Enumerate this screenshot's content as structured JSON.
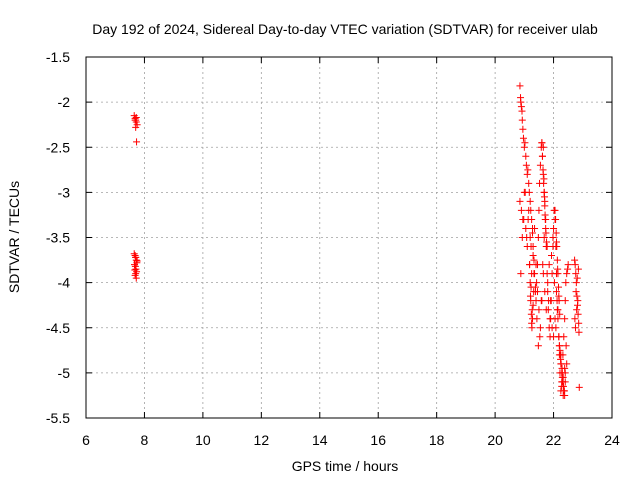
{
  "chart_data": {
    "type": "scatter",
    "title": "Day 192 of 2024, Sidereal Day-to-day VTEC variation (SDTVAR) for receiver ulab",
    "xlabel": "GPS time / hours",
    "ylabel": "SDTVAR / TECUs",
    "xlim": [
      6,
      24
    ],
    "ylim": [
      -5.5,
      -1.5
    ],
    "xticks": [
      6,
      8,
      10,
      12,
      14,
      16,
      18,
      20,
      22,
      24
    ],
    "yticks": [
      -1.5,
      -2,
      -2.5,
      -3,
      -3.5,
      -4,
      -4.5,
      -5,
      -5.5
    ],
    "xtick_labels": [
      "6",
      "8",
      "10",
      "12",
      "14",
      "16",
      "18",
      "20",
      "22",
      "24"
    ],
    "ytick_labels": [
      "-1.5",
      "-2",
      "-2.5",
      "-3",
      "-3.5",
      "-4",
      "-4.5",
      "-5",
      "-5.5"
    ],
    "grid": true,
    "marker": "+",
    "series": [
      {
        "name": "SDTVAR",
        "color": "#ff0000",
        "x": [
          7.65,
          7.68,
          7.7,
          7.72,
          7.75,
          7.7,
          7.68,
          7.72,
          7.73,
          7.65,
          7.68,
          7.7,
          7.72,
          7.74,
          7.66,
          7.69,
          7.71,
          7.73,
          7.7,
          7.68,
          7.72,
          7.7,
          7.75,
          7.67,
          20.85,
          20.87,
          20.88,
          20.9,
          20.92,
          20.93,
          20.95,
          20.97,
          21.0,
          21.02,
          21.05,
          21.07,
          21.1,
          21.12,
          21.15,
          21.17,
          21.2,
          21.22,
          21.25,
          21.28,
          21.3,
          21.33,
          21.35,
          21.38,
          21.4,
          21.42,
          21.45,
          21.48,
          21.5,
          21.52,
          21.55,
          21.58,
          21.6,
          21.62,
          21.65,
          21.68,
          21.7,
          21.72,
          21.75,
          21.78,
          21.8,
          21.82,
          21.85,
          21.88,
          21.9,
          21.92,
          21.95,
          21.98,
          22.0,
          22.02,
          22.05,
          22.08,
          22.1,
          22.12,
          22.15,
          22.18,
          22.2,
          22.22,
          22.25,
          22.28,
          22.3,
          22.32,
          22.35,
          22.38,
          22.4,
          22.42,
          22.45,
          22.48,
          22.5,
          20.85,
          20.9,
          20.95,
          21.0,
          21.05,
          21.1,
          21.15,
          21.2,
          21.25,
          21.3,
          21.35,
          21.4,
          21.45,
          21.5,
          21.55,
          21.6,
          21.65,
          21.7,
          21.75,
          21.8,
          21.85,
          21.9,
          21.95,
          22.0,
          22.05,
          22.1,
          22.15,
          22.2,
          22.25,
          22.3,
          22.35,
          22.4,
          22.45,
          20.88,
          20.93,
          20.98,
          21.03,
          21.08,
          21.13,
          21.18,
          21.23,
          21.28,
          21.33,
          21.38,
          21.43,
          21.48,
          21.53,
          21.58,
          21.63,
          21.68,
          21.73,
          21.78,
          21.83,
          21.88,
          21.93,
          21.98,
          22.03,
          22.08,
          22.13,
          22.18,
          22.23,
          22.28,
          22.33,
          22.38,
          22.43,
          21.6,
          21.62,
          21.64,
          21.66,
          21.68,
          21.7,
          21.72,
          21.74,
          21.76,
          21.65,
          21.67,
          21.69,
          21.71,
          21.73,
          21.18,
          21.2,
          21.22,
          21.24,
          21.26,
          21.28,
          21.3,
          21.32,
          21.25,
          21.27,
          21.21,
          21.23,
          22.05,
          22.07,
          22.09,
          22.11,
          22.13,
          22.15,
          22.17,
          22.19,
          22.21,
          22.1,
          22.14,
          22.18,
          22.72,
          22.74,
          22.76,
          22.78,
          22.8,
          22.82,
          22.84,
          22.86,
          22.75,
          22.79,
          22.83,
          22.77,
          22.81,
          22.85,
          22.73,
          22.87,
          22.2,
          22.22,
          22.24,
          22.26,
          22.28,
          22.3,
          22.32,
          22.34,
          22.36,
          22.38,
          22.4,
          22.25,
          22.29,
          22.33,
          22.37,
          22.88
        ],
        "y": [
          -2.15,
          -2.18,
          -2.2,
          -2.22,
          -2.25,
          -2.28,
          -2.2,
          -2.17,
          -2.44,
          -3.68,
          -3.7,
          -3.72,
          -3.75,
          -3.78,
          -3.8,
          -3.82,
          -3.85,
          -3.88,
          -3.9,
          -3.92,
          -3.95,
          -3.72,
          -3.76,
          -3.86,
          -1.82,
          -1.95,
          -2.0,
          -2.05,
          -2.1,
          -2.2,
          -2.3,
          -2.4,
          -2.5,
          -2.45,
          -2.6,
          -2.7,
          -2.8,
          -2.75,
          -2.9,
          -3.0,
          -3.1,
          -3.2,
          -3.3,
          -3.45,
          -3.6,
          -3.75,
          -3.9,
          -4.05,
          -4.2,
          -4.0,
          -3.8,
          -3.5,
          -3.2,
          -2.9,
          -2.7,
          -2.5,
          -2.45,
          -2.6,
          -2.8,
          -3.0,
          -3.1,
          -3.3,
          -3.6,
          -3.9,
          -4.1,
          -4.3,
          -4.5,
          -4.6,
          -4.4,
          -4.2,
          -3.9,
          -3.6,
          -3.4,
          -3.2,
          -3.3,
          -3.6,
          -3.9,
          -4.2,
          -4.4,
          -4.6,
          -4.8,
          -5.0,
          -5.2,
          -5.15,
          -5.0,
          -4.8,
          -4.6,
          -4.4,
          -4.2,
          -4.0,
          -3.9,
          -3.85,
          -3.8,
          -3.1,
          -3.2,
          -3.3,
          -3.0,
          -3.4,
          -3.6,
          -3.2,
          -3.5,
          -3.9,
          -3.7,
          -3.4,
          -3.8,
          -4.1,
          -4.3,
          -4.5,
          -4.2,
          -3.9,
          -4.1,
          -4.3,
          -4.0,
          -3.8,
          -4.2,
          -4.5,
          -4.6,
          -4.4,
          -4.1,
          -4.3,
          -4.7,
          -4.9,
          -5.1,
          -5.2,
          -5.0,
          -4.9,
          -3.9,
          -3.5,
          -3.3,
          -3.0,
          -3.5,
          -3.3,
          -3.8,
          -3.6,
          -3.4,
          -3.9,
          -4.1,
          -4.4,
          -4.7,
          -4.6,
          -4.2,
          -3.8,
          -3.5,
          -3.3,
          -3.6,
          -4.2,
          -4.4,
          -3.7,
          -3.5,
          -4.0,
          -4.5,
          -4.3,
          -4.6,
          -4.8,
          -5.1,
          -5.25,
          -4.95,
          -4.7,
          -2.45,
          -2.6,
          -2.75,
          -2.9,
          -3.0,
          -3.15,
          -3.3,
          -3.45,
          -3.55,
          -2.5,
          -2.85,
          -3.05,
          -3.25,
          -3.4,
          -3.8,
          -4.0,
          -4.2,
          -4.35,
          -4.5,
          -4.4,
          -4.25,
          -4.1,
          -4.45,
          -4.3,
          -4.15,
          -4.05,
          -3.2,
          -3.3,
          -3.45,
          -3.6,
          -3.75,
          -3.9,
          -4.05,
          -4.2,
          -4.35,
          -3.55,
          -3.85,
          -4.15,
          -3.75,
          -3.8,
          -3.9,
          -4.0,
          -4.15,
          -4.25,
          -4.35,
          -4.45,
          -4.5,
          -4.3,
          -4.2,
          -4.1,
          -3.95,
          -3.85,
          -4.4,
          -4.55,
          -4.7,
          -4.75,
          -4.85,
          -4.9,
          -5.0,
          -5.05,
          -5.1,
          -5.15,
          -5.2,
          -5.25,
          -5.1,
          -4.8,
          -4.95,
          -5.05,
          -5.2,
          -5.16
        ]
      }
    ]
  }
}
